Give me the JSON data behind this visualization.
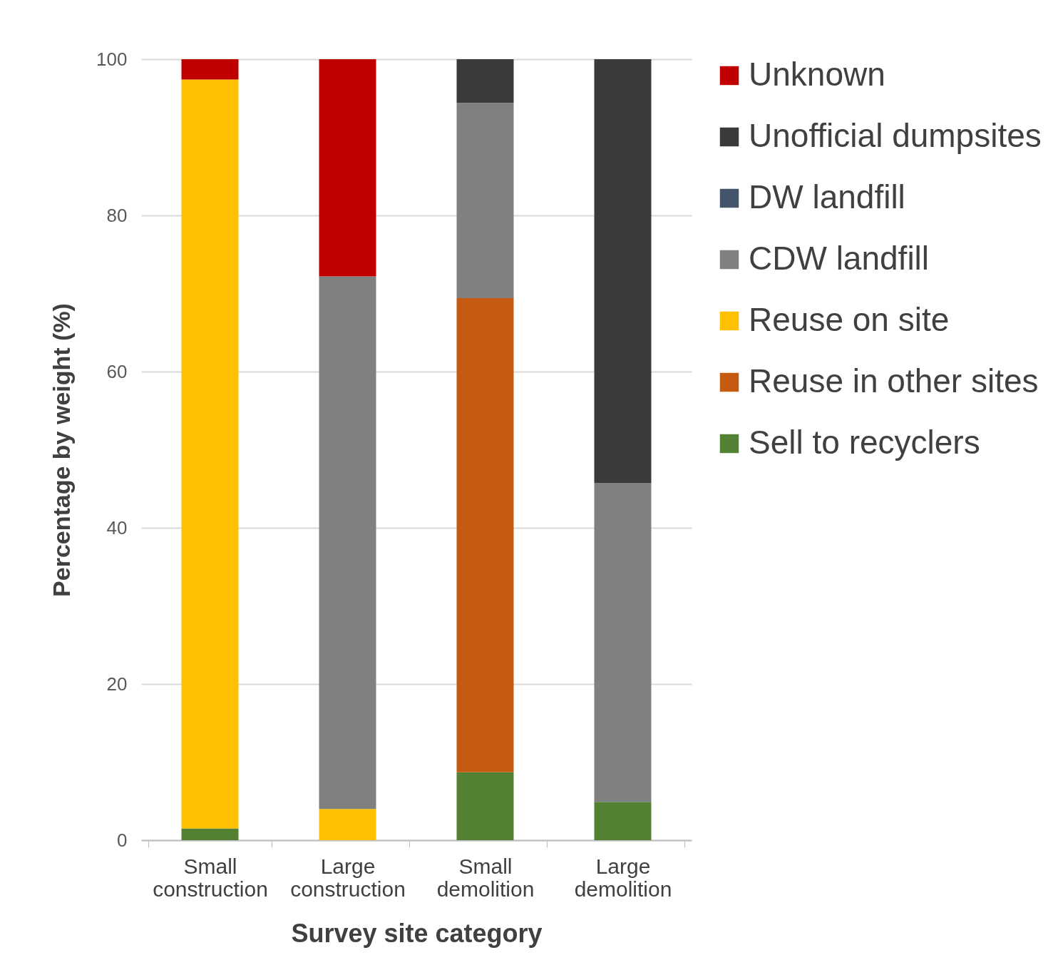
{
  "chart_data": {
    "type": "bar",
    "stacked": true,
    "xlabel": "Survey site category",
    "ylabel": "Percentage by weight (%)",
    "categories": [
      "Small construction",
      "Large construction",
      "Small demolition",
      "Large demolition"
    ],
    "ylim": [
      0,
      100
    ],
    "yticks": [
      0,
      20,
      40,
      60,
      80,
      100
    ],
    "grid": "y",
    "legend": "right",
    "series": [
      {
        "name": "Sell to recyclers",
        "color": "#548235",
        "values": [
          1.5,
          0,
          8.7,
          4.9
        ]
      },
      {
        "name": "Reuse in other sites",
        "color": "#c55a11",
        "values": [
          0,
          0,
          60.7,
          0
        ]
      },
      {
        "name": "Reuse on site",
        "color": "#ffc000",
        "values": [
          95.9,
          4.0,
          0,
          0
        ]
      },
      {
        "name": "CDW landfill",
        "color": "#808080",
        "values": [
          0,
          68.2,
          25.0,
          40.8
        ]
      },
      {
        "name": "DW landfill",
        "color": "#44546a",
        "values": [
          0,
          0,
          0,
          0
        ]
      },
      {
        "name": "Unofficial dumpsites",
        "color": "#3a3a3a",
        "values": [
          0,
          0,
          5.6,
          54.3
        ]
      },
      {
        "name": "Unknown",
        "color": "#c00000",
        "values": [
          2.6,
          27.8,
          0,
          0
        ]
      }
    ]
  }
}
